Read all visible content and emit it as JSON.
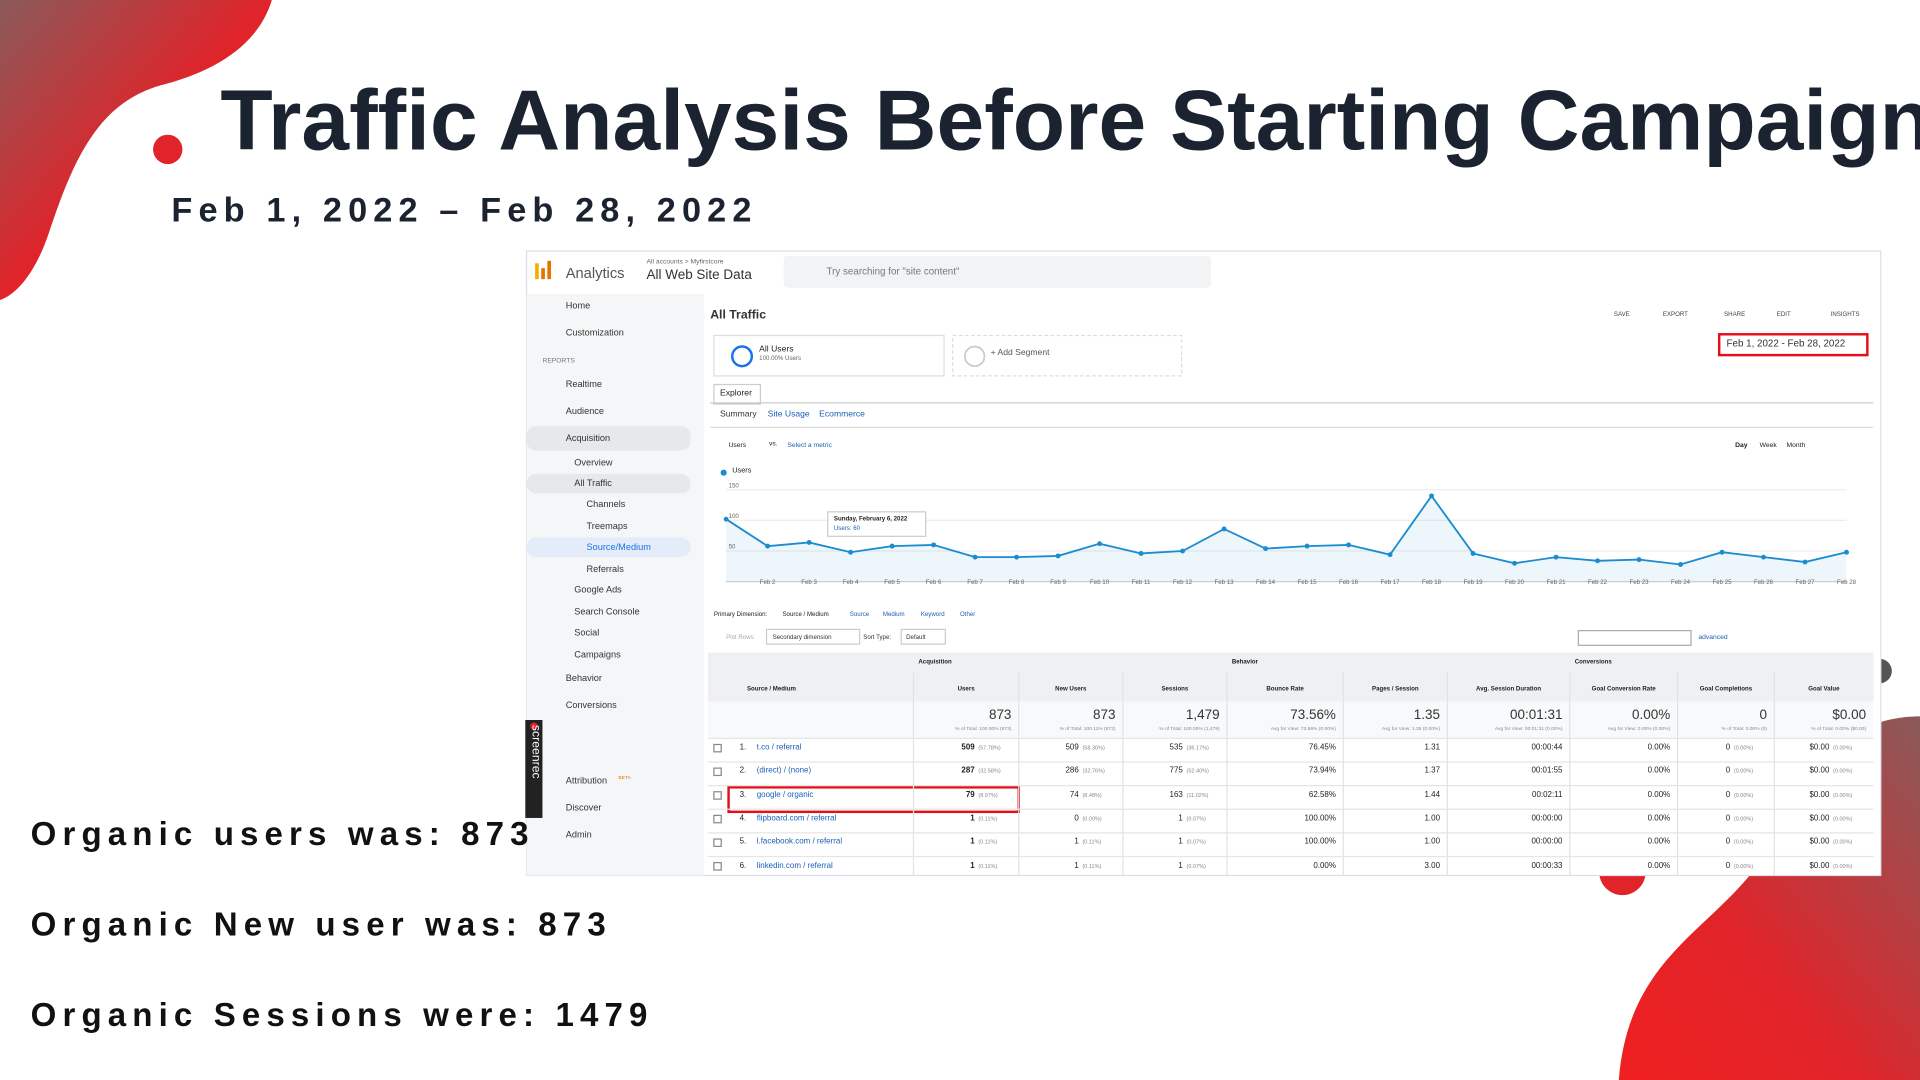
{
  "slide": {
    "title": "Traffic Analysis Before Starting Campaign",
    "date_range": "Feb 1, 2022 – Feb 28, 2022",
    "notes": [
      "Organic users was: 873",
      "Organic New user was: 873",
      "Organic Sessions were: 1479"
    ]
  },
  "ga": {
    "brand": "Analytics",
    "account_path": "All accounts > Myfirstcore",
    "property": "All Web Site Data",
    "search": "Try searching for \"site content\"",
    "reports_heading": "REPORTS",
    "nav": [
      {
        "label": "Home",
        "level": 0
      },
      {
        "label": "Customization",
        "level": 0
      },
      {
        "label": "Realtime",
        "level": 0
      },
      {
        "label": "Audience",
        "level": 0
      },
      {
        "label": "Acquisition",
        "level": 0
      },
      {
        "label": "Overview",
        "level": 1
      },
      {
        "label": "All Traffic",
        "level": 1
      },
      {
        "label": "Channels",
        "level": 2
      },
      {
        "label": "Treemaps",
        "level": 2
      },
      {
        "label": "Source/Medium",
        "level": 2
      },
      {
        "label": "Referrals",
        "level": 2
      },
      {
        "label": "Google Ads",
        "level": 1
      },
      {
        "label": "Search Console",
        "level": 1
      },
      {
        "label": "Social",
        "level": 1
      },
      {
        "label": "Campaigns",
        "level": 1
      },
      {
        "label": "Behavior",
        "level": 0
      },
      {
        "label": "Conversions",
        "level": 0
      },
      {
        "label": "Attribution",
        "level": 0
      },
      {
        "label": "Discover",
        "level": 0
      },
      {
        "label": "Admin",
        "level": 0
      }
    ],
    "beta": "BETA",
    "watermark": "screenrec",
    "page_title": "All Traffic",
    "toolbar": [
      "SAVE",
      "EXPORT",
      "SHARE",
      "EDIT",
      "INSIGHTS"
    ],
    "segment": {
      "name": "All Users",
      "share": "100.00% Users"
    },
    "add_segment": "+ Add Segment",
    "date_range": "Feb 1, 2022 - Feb 28, 2022",
    "tab": "Explorer",
    "subtabs": [
      "Summary",
      "Site Usage",
      "Ecommerce"
    ],
    "metric": "Users",
    "vs": "vs.",
    "select_metric": "Select a metric",
    "periods": [
      "Day",
      "Week",
      "Month"
    ],
    "chart": {
      "legend": "Users",
      "ylim": [
        0,
        160
      ],
      "yticks": [
        50,
        100,
        150
      ],
      "dates": [
        null,
        "Feb 2",
        "Feb 3",
        "Feb 4",
        "Feb 5",
        "Feb 6",
        "Feb 7",
        "Feb 8",
        "Feb 9",
        "Feb 10",
        "Feb 11",
        "Feb 12",
        "Feb 13",
        "Feb 14",
        "Feb 15",
        "Feb 16",
        "Feb 17",
        "Feb 18",
        "Feb 19",
        "Feb 20",
        "Feb 21",
        "Feb 22",
        "Feb 23",
        "Feb 24",
        "Feb 25",
        "Feb 26",
        "Feb 27",
        "Feb 28"
      ],
      "values": [
        102,
        58,
        64,
        48,
        58,
        60,
        40,
        40,
        42,
        62,
        46,
        50,
        86,
        54,
        58,
        60,
        44,
        140,
        46,
        30,
        40,
        34,
        36,
        28,
        48,
        40,
        32,
        48
      ],
      "color": "#1a8ccf",
      "tooltip": {
        "date": "Sunday, February 6, 2022",
        "text": "Users: 60"
      }
    },
    "dimension": {
      "label": "Primary Dimension:",
      "options": [
        "Source / Medium",
        "Source",
        "Medium",
        "Keyword",
        "Other"
      ]
    },
    "controls": [
      "Plot Rows",
      "Secondary dimension",
      "Sort Type:",
      "Default"
    ],
    "advanced": "advanced",
    "table": {
      "groups": [
        "Acquisition",
        "Behavior",
        "Conversions"
      ],
      "columns": [
        "Source / Medium",
        "Users",
        "New Users",
        "Sessions",
        "Bounce Rate",
        "Pages / Session",
        "Avg. Session Duration",
        "Goal Conversion Rate",
        "Goal Completions",
        "Goal Value"
      ],
      "totals": [
        [
          "873",
          "% of Total: 100.00% (873)"
        ],
        [
          "873",
          "% of Total: 100.11% (872)"
        ],
        [
          "1,479",
          "% of Total: 100.00% (1,479)"
        ],
        [
          "73.56%",
          "Avg for View: 73.56% (0.00%)"
        ],
        [
          "1.35",
          "Avg for View: 1.35 (0.00%)"
        ],
        [
          "00:01:31",
          "Avg for View: 00:01:31 (0.00%)"
        ],
        [
          "0.00%",
          "Avg for View: 0.00% (0.00%)"
        ],
        [
          "0",
          "% of Total: 0.00% (0)"
        ],
        [
          "$0.00",
          "% of Total: 0.00% ($0.00)"
        ]
      ],
      "rows": [
        {
          "index": "1.",
          "name": "t.co / referral",
          "cells": [
            [
              "509",
              "(57.78%)"
            ],
            [
              "509",
              "(58.30%)"
            ],
            [
              "535",
              "(36.17%)"
            ],
            [
              "76.45%"
            ],
            [
              "1.31"
            ],
            [
              "00:00:44"
            ],
            [
              "0.00%"
            ],
            [
              "0",
              "(0.00%)"
            ],
            [
              "$0.00",
              "(0.00%)"
            ]
          ]
        },
        {
          "index": "2.",
          "name": "(direct) / (none)",
          "cells": [
            [
              "287",
              "(32.58%)"
            ],
            [
              "286",
              "(32.76%)"
            ],
            [
              "775",
              "(52.40%)"
            ],
            [
              "73.94%"
            ],
            [
              "1.37"
            ],
            [
              "00:01:55"
            ],
            [
              "0.00%"
            ],
            [
              "0",
              "(0.00%)"
            ],
            [
              "$0.00",
              "(0.00%)"
            ]
          ]
        },
        {
          "index": "3.",
          "name": "google / organic",
          "cells": [
            [
              "79",
              "(8.97%)"
            ],
            [
              "74",
              "(8.48%)"
            ],
            [
              "163",
              "(11.02%)"
            ],
            [
              "62.58%"
            ],
            [
              "1.44"
            ],
            [
              "00:02:11"
            ],
            [
              "0.00%"
            ],
            [
              "0",
              "(0.00%)"
            ],
            [
              "$0.00",
              "(0.00%)"
            ]
          ]
        },
        {
          "index": "4.",
          "name": "flipboard.com / referral",
          "cells": [
            [
              "1",
              "(0.11%)"
            ],
            [
              "0",
              "(0.00%)"
            ],
            [
              "1",
              "(0.07%)"
            ],
            [
              "100.00%"
            ],
            [
              "1.00"
            ],
            [
              "00:00:00"
            ],
            [
              "0.00%"
            ],
            [
              "0",
              "(0.00%)"
            ],
            [
              "$0.00",
              "(0.00%)"
            ]
          ]
        },
        {
          "index": "5.",
          "name": "l.facebook.com / referral",
          "cells": [
            [
              "1",
              "(0.11%)"
            ],
            [
              "1",
              "(0.11%)"
            ],
            [
              "1",
              "(0.07%)"
            ],
            [
              "100.00%"
            ],
            [
              "1.00"
            ],
            [
              "00:00:00"
            ],
            [
              "0.00%"
            ],
            [
              "0",
              "(0.00%)"
            ],
            [
              "$0.00",
              "(0.00%)"
            ]
          ]
        },
        {
          "index": "6.",
          "name": "linkedin.com / referral",
          "cells": [
            [
              "1",
              "(0.11%)"
            ],
            [
              "1",
              "(0.11%)"
            ],
            [
              "1",
              "(0.07%)"
            ],
            [
              "0.00%"
            ],
            [
              "3.00"
            ],
            [
              "00:00:33"
            ],
            [
              "0.00%"
            ],
            [
              "0",
              "(0.00%)"
            ],
            [
              "$0.00",
              "(0.00%)"
            ]
          ]
        }
      ]
    }
  }
}
